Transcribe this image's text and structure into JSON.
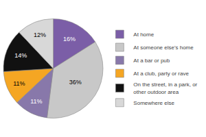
{
  "chart_data": {
    "type": "pie",
    "categories": [
      "At home",
      "At someone else's home",
      "At a bar or pub",
      "At a club, party or rave",
      "On the street, in a park, or\nother outdoor area",
      "Somewhere else"
    ],
    "values": [
      16,
      36,
      11,
      11,
      14,
      12
    ],
    "value_labels": [
      "16%",
      "36%",
      "11%",
      "11%",
      "14%",
      "12%"
    ],
    "colors": [
      "#7b5ea7",
      "#c8c8c8",
      "#8878aa",
      "#f5a623",
      "#111111",
      "#d8d8d8"
    ],
    "data_labels": true,
    "legend": "right"
  }
}
